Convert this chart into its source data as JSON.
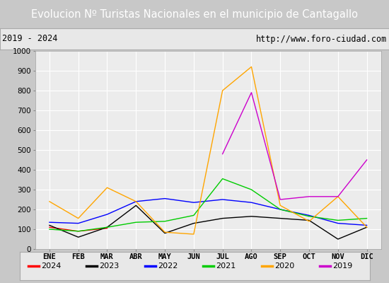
{
  "title": "Evolucion Nº Turistas Nacionales en el municipio de Cantagallo",
  "subtitle_left": "2019 - 2024",
  "subtitle_right": "http://www.foro-ciudad.com",
  "title_bg": "#4472c4",
  "title_color": "#ffffff",
  "months": [
    "ENE",
    "FEB",
    "MAR",
    "ABR",
    "MAY",
    "JUN",
    "JUL",
    "AGO",
    "SEP",
    "OCT",
    "NOV",
    "DIC"
  ],
  "ylim": [
    0,
    1000
  ],
  "yticks": [
    0,
    100,
    200,
    300,
    400,
    500,
    600,
    700,
    800,
    900,
    1000
  ],
  "series": {
    "2024": {
      "color": "#ff0000",
      "data": [
        110,
        90,
        105,
        null,
        null,
        null,
        null,
        null,
        null,
        null,
        null,
        null
      ]
    },
    "2023": {
      "color": "#000000",
      "data": [
        120,
        60,
        110,
        220,
        80,
        130,
        155,
        165,
        155,
        145,
        50,
        110
      ]
    },
    "2022": {
      "color": "#0000ff",
      "data": [
        135,
        130,
        175,
        240,
        255,
        235,
        250,
        235,
        200,
        170,
        130,
        120
      ]
    },
    "2021": {
      "color": "#00cc00",
      "data": [
        100,
        90,
        110,
        135,
        140,
        170,
        355,
        300,
        200,
        165,
        145,
        155
      ]
    },
    "2020": {
      "color": "#ffa500",
      "data": [
        240,
        155,
        310,
        240,
        85,
        75,
        800,
        920,
        220,
        140,
        265,
        110
      ]
    },
    "2019": {
      "color": "#cc00cc",
      "data": [
        null,
        null,
        null,
        null,
        null,
        null,
        480,
        790,
        250,
        265,
        265,
        450
      ]
    }
  },
  "plot_bg": "#ececec",
  "grid_color": "#ffffff",
  "outer_bg": "#c8c8c8",
  "subtitle_bg": "#e8e8e8",
  "legend_order": [
    "2024",
    "2023",
    "2022",
    "2021",
    "2020",
    "2019"
  ],
  "title_fontsize": 10.5,
  "subtitle_fontsize": 8.5,
  "tick_fontsize": 7.5,
  "legend_fontsize": 8
}
